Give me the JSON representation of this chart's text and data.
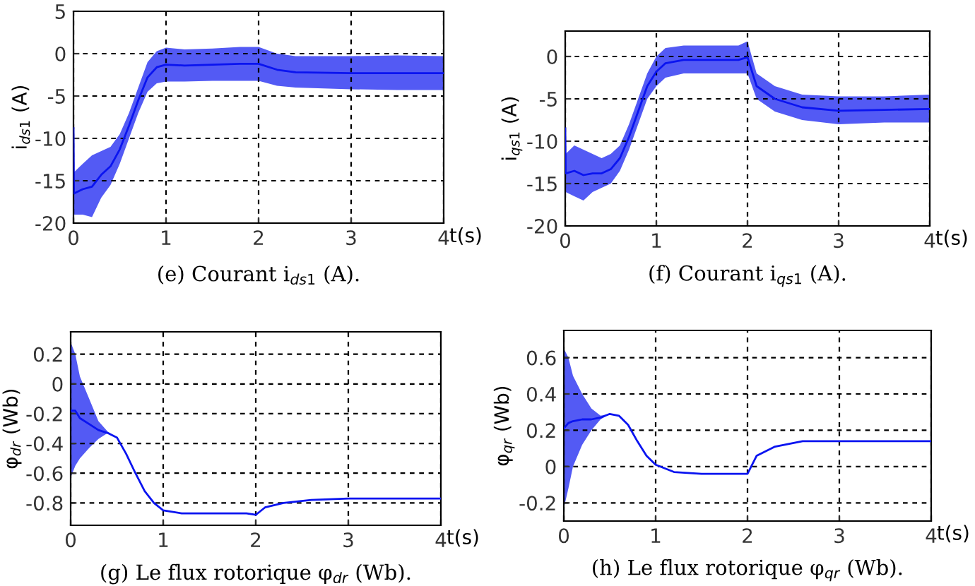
{
  "chart_data": [
    {
      "type": "line",
      "title": "(e) Courant i$_{ds1}$ (A).",
      "xlabel": "t(s)",
      "ylabel": "i$_{ds1}$ (A)",
      "xlim": [
        0,
        4
      ],
      "xticks": [
        0,
        1,
        2,
        3,
        4
      ],
      "ylim": [
        -20,
        5
      ],
      "yticks": [
        -20,
        -15,
        -10,
        -5,
        0,
        5
      ],
      "grid": true,
      "legend": false,
      "series": [
        {
          "color": "#0a14f0",
          "x": [
            0,
            0.005,
            0.1,
            0.2,
            0.3,
            0.4,
            0.5,
            0.6,
            0.7,
            0.8,
            0.9,
            1.0,
            1.2,
            1.5,
            1.8,
            2.0,
            2.2,
            2.4,
            3,
            3.5,
            4
          ],
          "values": [
            -8.8,
            -16.5,
            -16,
            -15.7,
            -14.3,
            -13.3,
            -11.3,
            -8.5,
            -5.5,
            -2.8,
            -1.6,
            -1.3,
            -1.4,
            -1.3,
            -1.2,
            -1.2,
            -1.9,
            -2.2,
            -2.3,
            -2.3,
            -2.3
          ],
          "upper": [
            1.5,
            -14,
            -13,
            -12,
            -11.5,
            -11,
            -9.5,
            -7,
            -4,
            -1,
            0.3,
            0.7,
            0.5,
            0.6,
            0.8,
            0.8,
            0,
            -0.3,
            -0.3,
            -0.2,
            -0.3
          ],
          "lower": [
            -19,
            -19,
            -19,
            -19.3,
            -17,
            -15.5,
            -13,
            -10,
            -7,
            -4.5,
            -3.5,
            -3.3,
            -3.3,
            -3.2,
            -3.2,
            -3.2,
            -3.8,
            -4,
            -4.2,
            -4.3,
            -4.3
          ]
        }
      ]
    },
    {
      "type": "line",
      "title": "(f) Courant i$_{qs1}$ (A).",
      "xlabel": "t(s)",
      "ylabel": "i$_{qs1}$ (A)",
      "xlim": [
        0,
        4
      ],
      "xticks": [
        0,
        1,
        2,
        3,
        4
      ],
      "ylim": [
        -20,
        3
      ],
      "yticks": [
        -20,
        -15,
        -10,
        -5,
        0
      ],
      "grid": true,
      "legend": false,
      "series": [
        {
          "color": "#0a14f0",
          "x": [
            0,
            0.005,
            0.1,
            0.2,
            0.3,
            0.4,
            0.5,
            0.6,
            0.7,
            0.8,
            0.9,
            1.0,
            1.1,
            1.3,
            1.6,
            1.9,
            2.0,
            2.1,
            2.3,
            2.6,
            3,
            3.5,
            4
          ],
          "values": [
            -8.5,
            -13.8,
            -13.5,
            -14,
            -13.8,
            -13.8,
            -13.3,
            -12,
            -9.5,
            -6.5,
            -3.5,
            -1.8,
            -0.8,
            -0.4,
            -0.4,
            -0.4,
            -0.1,
            -3.5,
            -5,
            -6,
            -6.4,
            -6.3,
            -6.2
          ],
          "upper": [
            -1,
            -11.5,
            -10.5,
            -11,
            -11.5,
            -12,
            -11.5,
            -10.5,
            -8,
            -5,
            -2,
            0,
            1,
            1.3,
            1.3,
            1.3,
            1.8,
            -2,
            -3.5,
            -4.5,
            -4.7,
            -4.7,
            -4.5
          ],
          "lower": [
            -16,
            -16,
            -16.5,
            -17,
            -16,
            -15.5,
            -15,
            -13.5,
            -11,
            -8,
            -5,
            -3.5,
            -2.5,
            -2,
            -2,
            -2,
            -2,
            -5,
            -6.5,
            -7.5,
            -8,
            -7.8,
            -7.8
          ]
        }
      ]
    },
    {
      "type": "line",
      "title": "(g) Le flux rotorique φ$_{dr}$ (Wb).",
      "xlabel": "t(s)",
      "ylabel": "φ$_{dr}$ (Wb)",
      "xlim": [
        0,
        4
      ],
      "xticks": [
        0,
        1,
        2,
        3,
        4
      ],
      "ylim": [
        -0.95,
        0.35
      ],
      "yticks": [
        -0.8,
        -0.6,
        -0.4,
        -0.2,
        0,
        0.2
      ],
      "grid": true,
      "legend": false,
      "series": [
        {
          "color": "#0a14f0",
          "x": [
            0,
            0.05,
            0.1,
            0.2,
            0.3,
            0.4,
            0.5,
            0.6,
            0.7,
            0.8,
            0.9,
            1.0,
            1.2,
            1.5,
            1.9,
            2.0,
            2.1,
            2.3,
            2.6,
            3,
            4
          ],
          "values": [
            -0.18,
            -0.18,
            -0.23,
            -0.27,
            -0.31,
            -0.33,
            -0.36,
            -0.47,
            -0.6,
            -0.72,
            -0.8,
            -0.85,
            -0.87,
            -0.87,
            -0.87,
            -0.88,
            -0.83,
            -0.8,
            -0.78,
            -0.77,
            -0.77
          ],
          "upper": [
            0.28,
            0.2,
            0.05,
            -0.1,
            -0.25,
            -0.32,
            -0.36,
            -0.47,
            -0.6,
            -0.72,
            -0.8,
            -0.85,
            -0.87,
            -0.87,
            -0.87,
            -0.88,
            -0.83,
            -0.8,
            -0.78,
            -0.77,
            -0.77
          ],
          "lower": [
            -0.63,
            -0.55,
            -0.5,
            -0.43,
            -0.37,
            -0.33,
            -0.36,
            -0.47,
            -0.6,
            -0.72,
            -0.8,
            -0.85,
            -0.87,
            -0.87,
            -0.87,
            -0.88,
            -0.83,
            -0.8,
            -0.78,
            -0.77,
            -0.77
          ]
        }
      ]
    },
    {
      "type": "line",
      "title": "(h) Le flux rotorique φ$_{qr}$ (Wb).",
      "xlabel": "t(s)",
      "ylabel": "φ$_{qr}$ (Wb)",
      "xlim": [
        0,
        4
      ],
      "xticks": [
        0,
        1,
        2,
        3,
        4
      ],
      "ylim": [
        -0.3,
        0.75
      ],
      "yticks": [
        -0.2,
        0,
        0.2,
        0.4,
        0.6
      ],
      "grid": true,
      "legend": false,
      "series": [
        {
          "color": "#0a14f0",
          "x": [
            0,
            0.05,
            0.1,
            0.2,
            0.3,
            0.4,
            0.5,
            0.6,
            0.7,
            0.8,
            0.9,
            1.0,
            1.2,
            1.5,
            1.9,
            2.0,
            2.1,
            2.3,
            2.6,
            3,
            4
          ],
          "values": [
            0.21,
            0.24,
            0.25,
            0.26,
            0.26,
            0.27,
            0.29,
            0.28,
            0.23,
            0.14,
            0.06,
            0.01,
            -0.03,
            -0.04,
            -0.04,
            -0.04,
            0.06,
            0.11,
            0.14,
            0.14,
            0.14
          ],
          "upper": [
            0.65,
            0.6,
            0.5,
            0.4,
            0.32,
            0.28,
            0.29,
            0.28,
            0.23,
            0.14,
            0.06,
            0.01,
            -0.03,
            -0.04,
            -0.04,
            -0.04,
            0.06,
            0.11,
            0.14,
            0.14,
            0.14
          ],
          "lower": [
            -0.23,
            -0.12,
            0.0,
            0.12,
            0.2,
            0.26,
            0.29,
            0.28,
            0.23,
            0.14,
            0.06,
            0.01,
            -0.03,
            -0.04,
            -0.04,
            -0.04,
            0.06,
            0.11,
            0.14,
            0.14,
            0.14
          ]
        }
      ]
    }
  ]
}
